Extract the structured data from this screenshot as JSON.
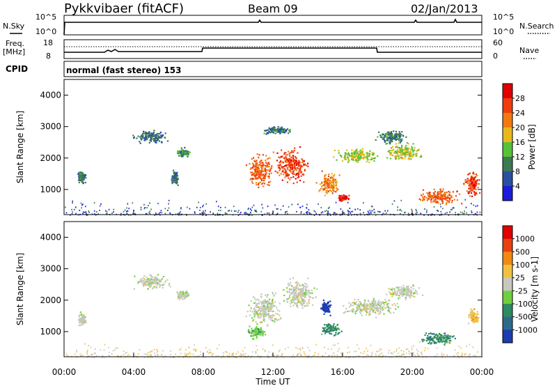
{
  "header": {
    "title": "Pykkvibaer (fitACF)",
    "beam": "Beam 09",
    "date": "02/Jan/2013"
  },
  "noise_panel": {
    "left_label": "N.Sky",
    "right_label": "N.Search",
    "left_ticks": [
      "10^5",
      "10^0"
    ],
    "right_ticks": [
      "10^5",
      "10^0"
    ]
  },
  "freq_panel": {
    "left_label_1": "Freq.",
    "left_label_2": "[MHz]",
    "right_label": "Nave",
    "left_ticks": [
      "18",
      "8"
    ],
    "right_ticks": [
      "60",
      "0"
    ]
  },
  "cpid": {
    "label": "CPID",
    "mode": "normal (fast stereo) 153"
  },
  "colors": {
    "power_scale": [
      "#1c1cd8",
      "#2a4fa0",
      "#3c7a52",
      "#55c238",
      "#e8b81c",
      "#f07a10",
      "#f03c10",
      "#e00000"
    ],
    "velocity_scale": [
      "#1c3cb0",
      "#2c6a8c",
      "#2e8a60",
      "#6ed040",
      "#c8c8c0",
      "#f0c040",
      "#f08a10",
      "#e84010",
      "#e00000"
    ]
  },
  "chart_data": [
    {
      "type": "heatmap",
      "name": "power-panel",
      "ylabel": "Slant Range [km]",
      "yticks": [
        "4000",
        "3000",
        "2000",
        "1000"
      ],
      "ylim": [
        200,
        4500
      ],
      "colorbar_label": "Power [dB]",
      "colorbar_ticks": [
        "28",
        "24",
        "20",
        "16",
        "12",
        "8",
        "4"
      ],
      "clim": [
        0,
        32
      ],
      "blobs": [
        {
          "t": 1.0,
          "r": 1400,
          "dt": 0.3,
          "dr": 250,
          "v": 7
        },
        {
          "t": 5.0,
          "r": 2700,
          "dt": 1.2,
          "dr": 250,
          "v": 6
        },
        {
          "t": 6.8,
          "r": 2200,
          "dt": 0.5,
          "dr": 180,
          "v": 9
        },
        {
          "t": 6.3,
          "r": 1400,
          "dt": 0.3,
          "dr": 300,
          "v": 6
        },
        {
          "t": 11.2,
          "r": 1600,
          "dt": 0.9,
          "dr": 650,
          "v": 22
        },
        {
          "t": 13.0,
          "r": 1800,
          "dt": 1.2,
          "dr": 650,
          "v": 24
        },
        {
          "t": 12.2,
          "r": 2900,
          "dt": 1.0,
          "dr": 150,
          "v": 7
        },
        {
          "t": 15.2,
          "r": 1200,
          "dt": 0.8,
          "dr": 450,
          "v": 20
        },
        {
          "t": 16.0,
          "r": 750,
          "dt": 0.4,
          "dr": 120,
          "v": 27
        },
        {
          "t": 16.8,
          "r": 2100,
          "dt": 1.5,
          "dr": 300,
          "v": 14
        },
        {
          "t": 18.8,
          "r": 2700,
          "dt": 1.0,
          "dr": 300,
          "v": 8
        },
        {
          "t": 19.5,
          "r": 2200,
          "dt": 1.3,
          "dr": 350,
          "v": 15
        },
        {
          "t": 21.5,
          "r": 800,
          "dt": 1.5,
          "dr": 300,
          "v": 22
        },
        {
          "t": 23.4,
          "r": 1200,
          "dt": 0.5,
          "dr": 500,
          "v": 24
        }
      ]
    },
    {
      "type": "heatmap",
      "name": "velocity-panel",
      "ylabel": "Slant Range [km]",
      "yticks": [
        "4000",
        "3000",
        "2000",
        "1000"
      ],
      "ylim": [
        200,
        4500
      ],
      "colorbar_label": "Velocity [m s-1]",
      "colorbar_ticks": [
        "1000",
        "500",
        "100",
        "25",
        "-25",
        "-100",
        "-500",
        "-1000"
      ],
      "xlabel": "Time UT",
      "xticks": [
        "00:00",
        "04:00",
        "08:00",
        "12:00",
        "16:00",
        "20:00",
        "00:00"
      ],
      "xlim": [
        0,
        24
      ],
      "blobs": [
        {
          "t": 1.0,
          "r": 1400,
          "dt": 0.3,
          "dr": 250,
          "c": 4
        },
        {
          "t": 5.0,
          "r": 2600,
          "dt": 1.3,
          "dr": 300,
          "c": 4
        },
        {
          "t": 6.8,
          "r": 2200,
          "dt": 0.5,
          "dr": 180,
          "c": 4
        },
        {
          "t": 11.5,
          "r": 1700,
          "dt": 1.2,
          "dr": 600,
          "c": 4
        },
        {
          "t": 11.0,
          "r": 1000,
          "dt": 0.7,
          "dr": 250,
          "c": 3
        },
        {
          "t": 13.5,
          "r": 2200,
          "dt": 1.2,
          "dr": 600,
          "c": 4
        },
        {
          "t": 15.3,
          "r": 1100,
          "dt": 0.7,
          "dr": 250,
          "c": 2
        },
        {
          "t": 15.0,
          "r": 1800,
          "dt": 0.4,
          "dr": 300,
          "c": 0
        },
        {
          "t": 17.5,
          "r": 1800,
          "dt": 2.0,
          "dr": 350,
          "c": 4
        },
        {
          "t": 19.5,
          "r": 2300,
          "dt": 1.2,
          "dr": 300,
          "c": 4
        },
        {
          "t": 21.5,
          "r": 800,
          "dt": 1.3,
          "dr": 250,
          "c": 2
        },
        {
          "t": 23.5,
          "r": 1500,
          "dt": 0.4,
          "dr": 300,
          "c": 5
        }
      ]
    }
  ]
}
